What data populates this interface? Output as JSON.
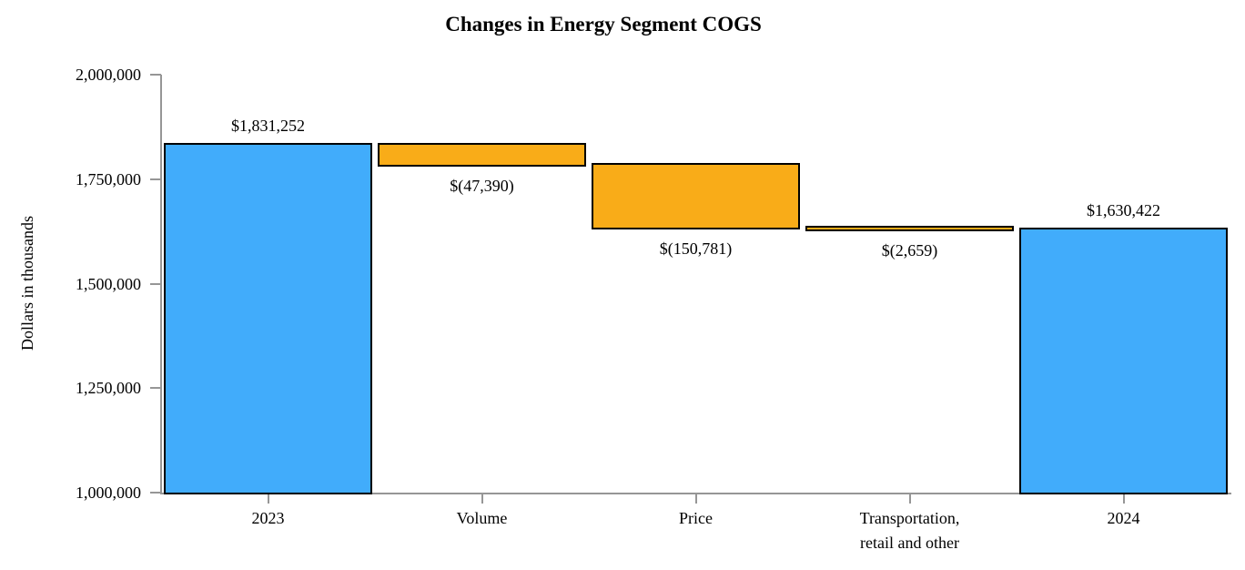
{
  "chart_data": {
    "type": "waterfall",
    "title": "Changes in Energy Segment COGS",
    "ylabel": "Dollars in thousands",
    "xlabel": "",
    "ylim": [
      1000000,
      2000000
    ],
    "grid": false,
    "legend": "none",
    "yticks": [
      {
        "value": 2000000,
        "label": "2,000,000"
      },
      {
        "value": 1750000,
        "label": "1,750,000"
      },
      {
        "value": 1500000,
        "label": "1,500,000"
      },
      {
        "value": 1250000,
        "label": "1,250,000"
      },
      {
        "value": 1000000,
        "label": "1,000,000"
      }
    ],
    "categories": [
      "2023",
      "Volume",
      "Price",
      "Transportation,\nretail and other",
      "2024"
    ],
    "bars": [
      {
        "category": "2023",
        "start": 1000000,
        "end": 1831252,
        "delta": 831252,
        "value_label": "$1,831,252",
        "value_label_position": "above",
        "role": "total"
      },
      {
        "category": "Volume",
        "start": 1831252,
        "end": 1783862,
        "delta": -47390,
        "value_label": "$(47,390)",
        "value_label_position": "below",
        "role": "decrease"
      },
      {
        "category": "Price",
        "start": 1783862,
        "end": 1633081,
        "delta": -150781,
        "value_label": "$(150,781)",
        "value_label_position": "below",
        "role": "decrease"
      },
      {
        "category": "Transportation,\nretail and other",
        "start": 1633081,
        "end": 1630422,
        "delta": -2659,
        "value_label": "$(2,659)",
        "value_label_position": "below",
        "role": "decrease"
      },
      {
        "category": "2024",
        "start": 1000000,
        "end": 1630422,
        "delta": 630422,
        "value_label": "$1,630,422",
        "value_label_position": "above",
        "role": "total"
      }
    ],
    "colors": {
      "total_bar": "#41ACFB",
      "decrease_bar": "#F9AC18",
      "bar_border": "#000000",
      "axis": "#969696",
      "text": "#000000",
      "background": "#FFFFFF"
    }
  }
}
